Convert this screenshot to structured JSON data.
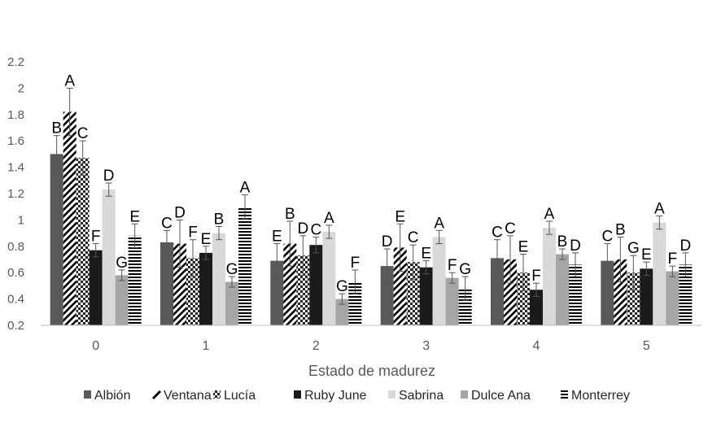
{
  "chart_data": {
    "type": "bar",
    "title": "",
    "xlabel": "Estado de madurez",
    "ylabel": "",
    "categories": [
      "0",
      "1",
      "2",
      "3",
      "4",
      "5"
    ],
    "ylim": [
      0.2,
      2.2
    ],
    "yticks": [
      "0.2",
      "0.4",
      "0.6",
      "0.8",
      "1",
      "1.2",
      "1.4",
      "1.6",
      "1.8",
      "2",
      "2.2"
    ],
    "grid": false,
    "legend_position": "bottom",
    "series": [
      {
        "name": "Albión",
        "pattern": "solid-dark",
        "color": "#595959",
        "values": [
          1.5,
          0.83,
          0.69,
          0.65,
          0.71,
          0.69
        ],
        "errors": [
          0.14,
          0.09,
          0.13,
          0.13,
          0.14,
          0.13
        ],
        "labels": [
          "B",
          "C",
          "E",
          "D",
          "C",
          "C"
        ]
      },
      {
        "name": "Ventana",
        "pattern": "diagonal",
        "color": "#000000",
        "values": [
          1.82,
          0.82,
          0.82,
          0.79,
          0.7,
          0.7
        ],
        "errors": [
          0.18,
          0.18,
          0.17,
          0.18,
          0.18,
          0.17
        ],
        "labels": [
          "A",
          "D",
          "B",
          "E",
          "C",
          "B"
        ]
      },
      {
        "name": "Lucía",
        "pattern": "checker",
        "color": "#404040",
        "values": [
          1.47,
          0.71,
          0.73,
          0.68,
          0.6,
          0.6
        ],
        "errors": [
          0.13,
          0.14,
          0.15,
          0.13,
          0.14,
          0.13
        ],
        "labels": [
          "C",
          "F",
          "D",
          "C",
          "E",
          "G"
        ]
      },
      {
        "name": "Ruby June",
        "pattern": "solid-black",
        "color": "#1a1a1a",
        "values": [
          0.77,
          0.75,
          0.81,
          0.64,
          0.47,
          0.63
        ],
        "errors": [
          0.05,
          0.05,
          0.06,
          0.05,
          0.05,
          0.05
        ],
        "labels": [
          "F",
          "E",
          "C",
          "E",
          "F",
          "E"
        ]
      },
      {
        "name": "Sabrina",
        "pattern": "solid-light",
        "color": "#d9d9d9",
        "values": [
          1.23,
          0.9,
          0.91,
          0.87,
          0.94,
          0.98
        ],
        "errors": [
          0.05,
          0.05,
          0.05,
          0.05,
          0.05,
          0.05
        ],
        "labels": [
          "D",
          "B",
          "A",
          "A",
          "A",
          "A"
        ]
      },
      {
        "name": "Dulce Ana",
        "pattern": "solid-gray",
        "color": "#a6a6a6",
        "values": [
          0.58,
          0.53,
          0.4,
          0.56,
          0.74,
          0.61
        ],
        "errors": [
          0.04,
          0.04,
          0.04,
          0.04,
          0.04,
          0.04
        ],
        "labels": [
          "G",
          "G",
          "G",
          "F",
          "B",
          "F"
        ]
      },
      {
        "name": "Monterrey",
        "pattern": "horizontal",
        "color": "#000000",
        "values": [
          0.88,
          1.1,
          0.53,
          0.48,
          0.66,
          0.66
        ],
        "errors": [
          0.09,
          0.09,
          0.09,
          0.09,
          0.09,
          0.09
        ],
        "labels": [
          "E",
          "A",
          "F",
          "G",
          "D",
          "D"
        ]
      }
    ]
  }
}
